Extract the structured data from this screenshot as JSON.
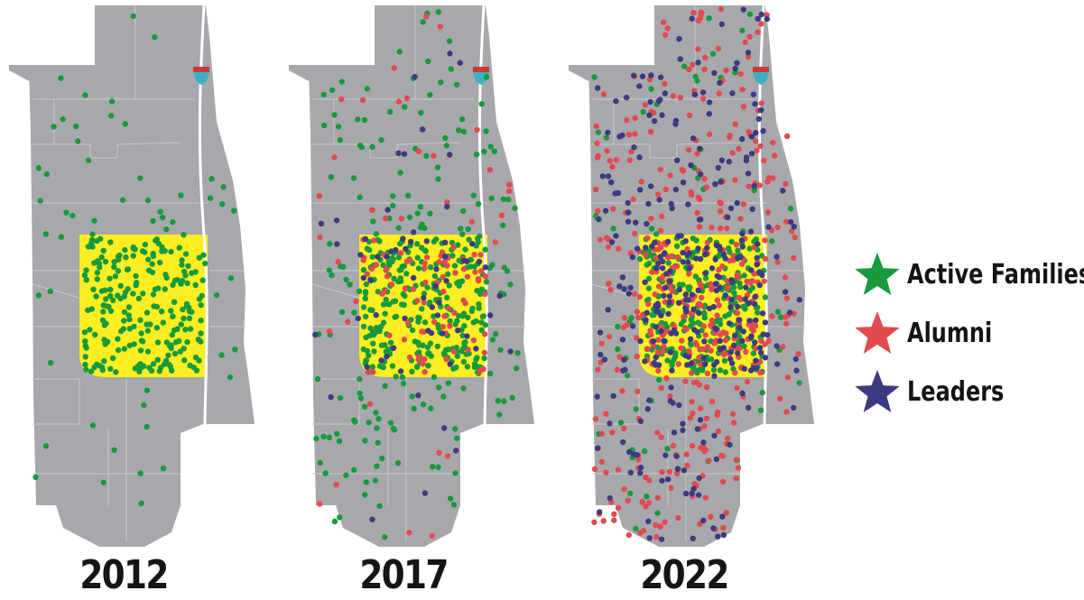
{
  "colors": {
    "active": "#179a3c",
    "alumni": "#e24a4f",
    "leaders": "#3d3a82",
    "land": "#a7a8ac",
    "zone": "#fcee21",
    "road": "#ffffff",
    "marker": "#3fb0c4",
    "marker_top": "#c83a3a"
  },
  "panels": [
    {
      "year": "2012",
      "counts": {
        "zone_active": 220,
        "out_active": 55,
        "zone_alumni": 0,
        "out_alumni": 0,
        "zone_leaders": 0,
        "out_leaders": 0
      }
    },
    {
      "year": "2017",
      "counts": {
        "zone_active": 260,
        "out_active": 160,
        "zone_alumni": 80,
        "out_alumni": 35,
        "zone_leaders": 40,
        "out_leaders": 25
      }
    },
    {
      "year": "2022",
      "counts": {
        "zone_active": 240,
        "out_active": 60,
        "zone_alumni": 170,
        "out_alumni": 260,
        "zone_leaders": 150,
        "out_leaders": 180
      }
    }
  ],
  "legend": [
    {
      "label": "Active Families",
      "color_key": "active",
      "icon": "star-icon"
    },
    {
      "label": "Alumni",
      "color_key": "alumni",
      "icon": "star-icon"
    },
    {
      "label": "Leaders",
      "color_key": "leaders",
      "icon": "star-icon"
    }
  ]
}
